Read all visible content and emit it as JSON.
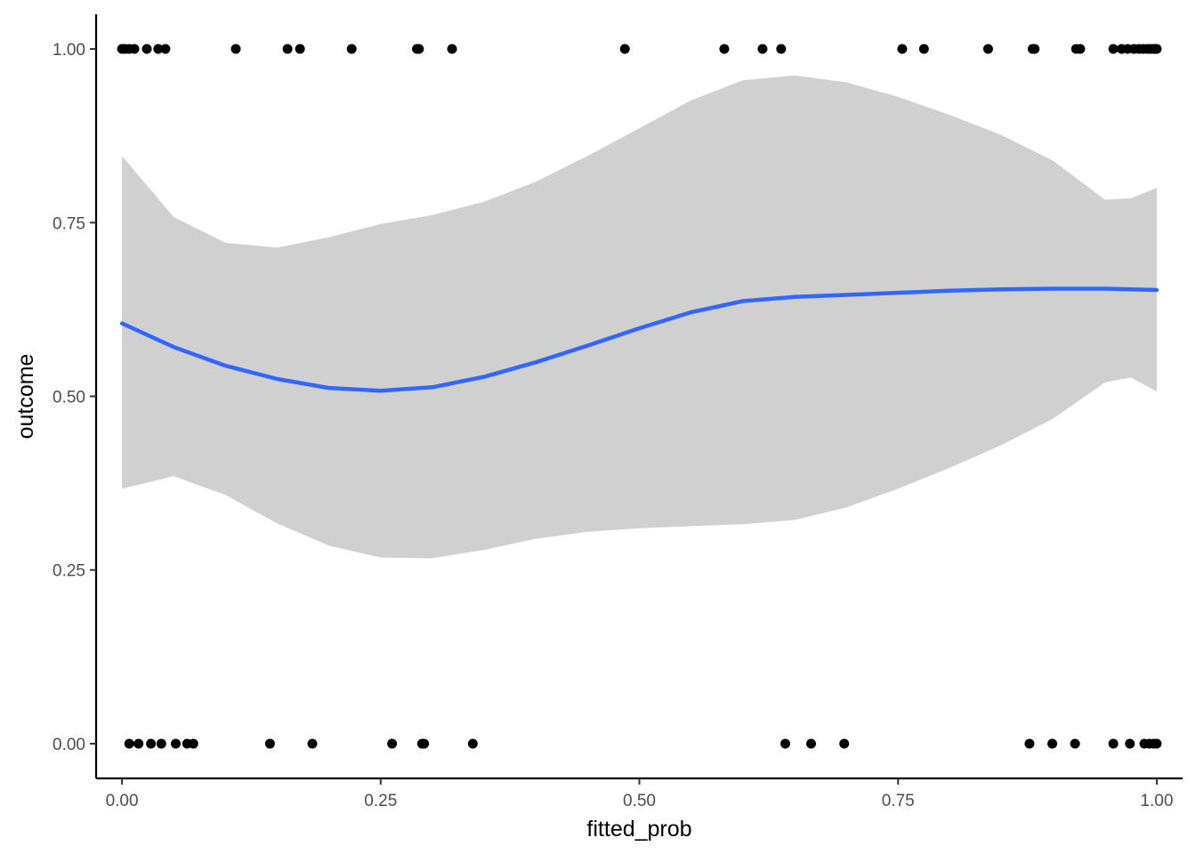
{
  "chart_data": {
    "type": "scatter",
    "title": "",
    "xlabel": "fitted_prob",
    "ylabel": "outcome",
    "xlim": [
      -0.025,
      1.025
    ],
    "ylim": [
      -0.05,
      1.05
    ],
    "grid": false,
    "x_ticks": [
      0,
      0.25,
      0.5,
      0.75,
      1
    ],
    "x_tick_labels": [
      "0.00",
      "0.25",
      "0.50",
      "0.75",
      "1.00"
    ],
    "y_ticks": [
      0,
      0.25,
      0.5,
      0.75,
      1
    ],
    "y_tick_labels": [
      "0.00",
      "0.25",
      "0.50",
      "0.75",
      "1.00"
    ],
    "colors": {
      "points": "#000000",
      "smooth_line": "#3366ff",
      "ribbon": "#d0d0d0",
      "axis": "#000000"
    },
    "points": [
      {
        "x": 0.0,
        "y": 1
      },
      {
        "x": 0.003,
        "y": 1
      },
      {
        "x": 0.007,
        "y": 1
      },
      {
        "x": 0.012,
        "y": 1
      },
      {
        "x": 0.024,
        "y": 1
      },
      {
        "x": 0.035,
        "y": 1
      },
      {
        "x": 0.042,
        "y": 1
      },
      {
        "x": 0.11,
        "y": 1
      },
      {
        "x": 0.16,
        "y": 1
      },
      {
        "x": 0.172,
        "y": 1
      },
      {
        "x": 0.222,
        "y": 1
      },
      {
        "x": 0.285,
        "y": 1
      },
      {
        "x": 0.287,
        "y": 1
      },
      {
        "x": 0.319,
        "y": 1
      },
      {
        "x": 0.486,
        "y": 1
      },
      {
        "x": 0.582,
        "y": 1
      },
      {
        "x": 0.619,
        "y": 1
      },
      {
        "x": 0.637,
        "y": 1
      },
      {
        "x": 0.754,
        "y": 1
      },
      {
        "x": 0.775,
        "y": 1
      },
      {
        "x": 0.837,
        "y": 1
      },
      {
        "x": 0.88,
        "y": 1
      },
      {
        "x": 0.882,
        "y": 1
      },
      {
        "x": 0.922,
        "y": 1
      },
      {
        "x": 0.926,
        "y": 1
      },
      {
        "x": 0.958,
        "y": 1
      },
      {
        "x": 0.966,
        "y": 1
      },
      {
        "x": 0.972,
        "y": 1
      },
      {
        "x": 0.978,
        "y": 1
      },
      {
        "x": 0.983,
        "y": 1
      },
      {
        "x": 0.987,
        "y": 1
      },
      {
        "x": 0.991,
        "y": 1
      },
      {
        "x": 0.994,
        "y": 1
      },
      {
        "x": 0.997,
        "y": 1
      },
      {
        "x": 0.999,
        "y": 1
      },
      {
        "x": 1.0,
        "y": 1
      },
      {
        "x": 0.007,
        "y": 0
      },
      {
        "x": 0.016,
        "y": 0
      },
      {
        "x": 0.028,
        "y": 0
      },
      {
        "x": 0.038,
        "y": 0
      },
      {
        "x": 0.052,
        "y": 0
      },
      {
        "x": 0.063,
        "y": 0
      },
      {
        "x": 0.069,
        "y": 0
      },
      {
        "x": 0.143,
        "y": 0
      },
      {
        "x": 0.184,
        "y": 0
      },
      {
        "x": 0.261,
        "y": 0
      },
      {
        "x": 0.29,
        "y": 0
      },
      {
        "x": 0.292,
        "y": 0
      },
      {
        "x": 0.339,
        "y": 0
      },
      {
        "x": 0.641,
        "y": 0
      },
      {
        "x": 0.666,
        "y": 0
      },
      {
        "x": 0.698,
        "y": 0
      },
      {
        "x": 0.877,
        "y": 0
      },
      {
        "x": 0.899,
        "y": 0
      },
      {
        "x": 0.921,
        "y": 0
      },
      {
        "x": 0.958,
        "y": 0
      },
      {
        "x": 0.974,
        "y": 0
      },
      {
        "x": 0.988,
        "y": 0
      },
      {
        "x": 0.993,
        "y": 0
      },
      {
        "x": 0.997,
        "y": 0
      },
      {
        "x": 1.0,
        "y": 0
      }
    ],
    "smooth": {
      "x": [
        0.0,
        0.05,
        0.1,
        0.15,
        0.2,
        0.25,
        0.3,
        0.35,
        0.4,
        0.45,
        0.5,
        0.55,
        0.6,
        0.65,
        0.7,
        0.75,
        0.8,
        0.85,
        0.9,
        0.95,
        0.975,
        1.0
      ],
      "y": [
        0.605,
        0.571,
        0.544,
        0.525,
        0.512,
        0.508,
        0.513,
        0.528,
        0.549,
        0.573,
        0.598,
        0.621,
        0.637,
        0.643,
        0.646,
        0.649,
        0.652,
        0.654,
        0.655,
        0.655,
        0.654,
        0.653
      ],
      "lower": [
        0.367,
        0.385,
        0.358,
        0.317,
        0.285,
        0.268,
        0.267,
        0.279,
        0.295,
        0.305,
        0.31,
        0.313,
        0.316,
        0.322,
        0.34,
        0.367,
        0.397,
        0.43,
        0.468,
        0.52,
        0.527,
        0.507
      ],
      "upper": [
        0.846,
        0.758,
        0.721,
        0.714,
        0.729,
        0.748,
        0.761,
        0.78,
        0.809,
        0.846,
        0.886,
        0.926,
        0.955,
        0.962,
        0.952,
        0.931,
        0.905,
        0.876,
        0.839,
        0.783,
        0.785,
        0.8
      ]
    }
  }
}
